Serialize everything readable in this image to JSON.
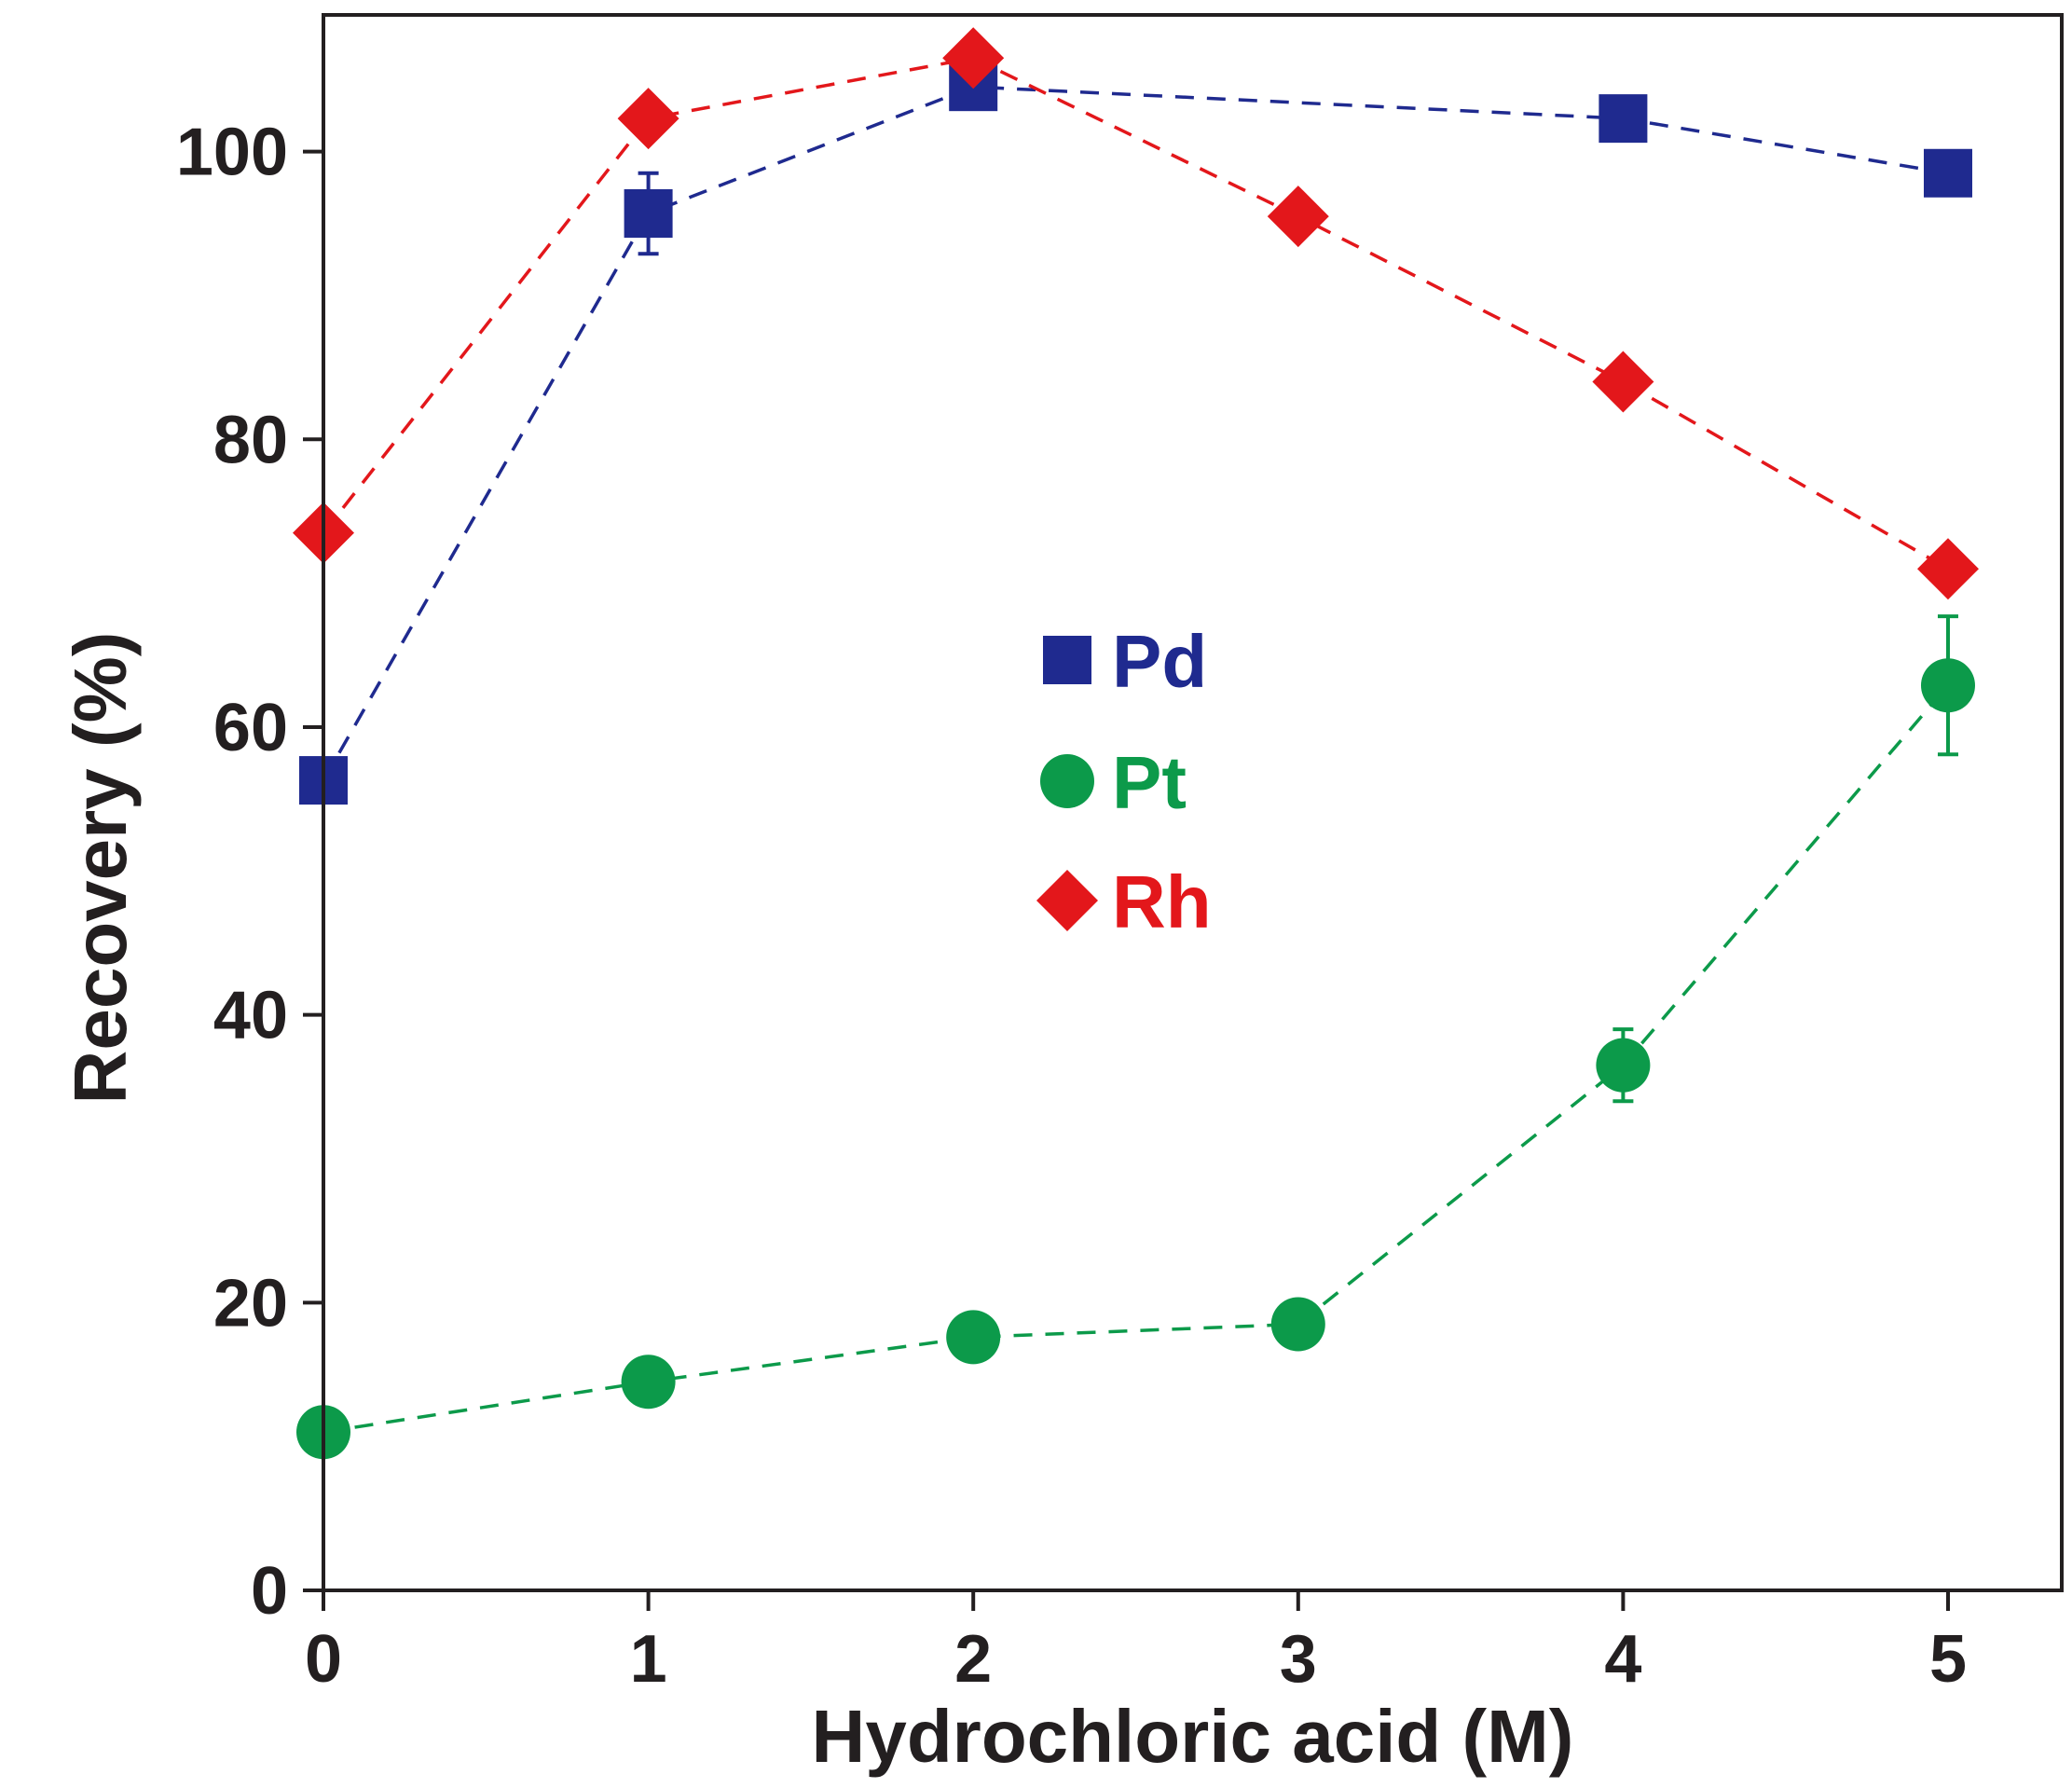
{
  "chart_data": {
    "type": "line",
    "title": "",
    "xlabel": "Hydrochloric acid (M)",
    "ylabel": "Recovery (%)",
    "x": [
      0,
      1,
      2,
      3,
      4,
      5
    ],
    "x_ticks": [
      "0",
      "1",
      "2",
      "3",
      "4",
      "5"
    ],
    "y_ticks": [
      "0",
      "20",
      "40",
      "60",
      "80",
      "100"
    ],
    "xlim": [
      0,
      5.35
    ],
    "ylim": [
      0,
      109.5
    ],
    "grid": false,
    "legend_position": "center",
    "series": [
      {
        "name": "Pd",
        "marker": "square",
        "color": "#1f2a8f",
        "x": [
          0,
          1,
          2,
          4,
          5
        ],
        "values": [
          56.3,
          95.7,
          104.5,
          102.3,
          98.5
        ],
        "errors": [
          0,
          2.8,
          0,
          0,
          0
        ]
      },
      {
        "name": "Pt",
        "marker": "circle",
        "color": "#0c9a4a",
        "x": [
          0,
          1,
          2,
          3,
          4,
          5
        ],
        "values": [
          11.0,
          14.5,
          17.6,
          18.5,
          36.5,
          62.9
        ],
        "errors": [
          0,
          0,
          0,
          0,
          2.5,
          4.8
        ]
      },
      {
        "name": "Rh",
        "marker": "diamond",
        "color": "#e3171b",
        "x": [
          0,
          1,
          2,
          3,
          4,
          5
        ],
        "values": [
          73.5,
          102.3,
          106.5,
          95.5,
          84.0,
          71.0
        ],
        "errors": [
          0,
          0,
          0,
          0,
          0,
          0
        ]
      }
    ]
  }
}
